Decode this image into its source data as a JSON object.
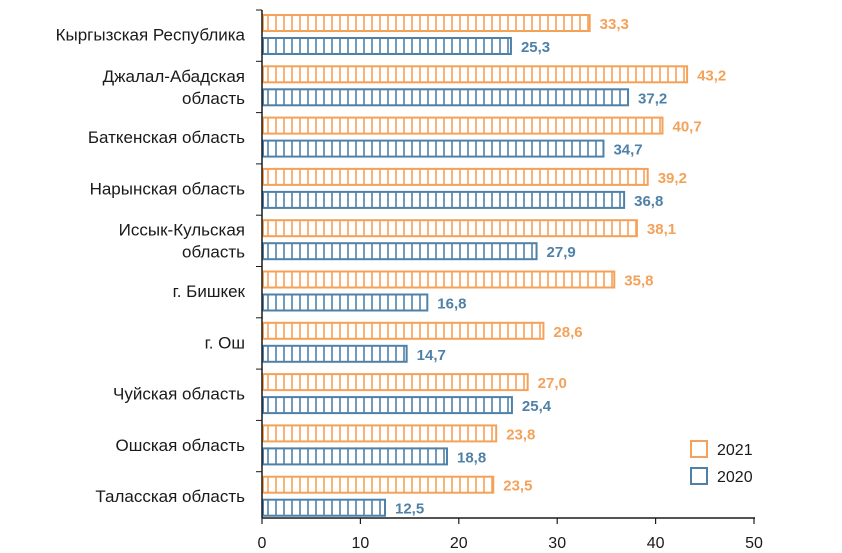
{
  "chart_data": {
    "type": "bar",
    "orientation": "horizontal",
    "title": "",
    "xlabel": "",
    "ylabel": "",
    "xlim": [
      0,
      50
    ],
    "xticks": [
      0,
      10,
      20,
      30,
      40,
      50
    ],
    "grid": false,
    "legend_position": "bottom-right",
    "categories": [
      "Кыргызская Республика",
      "Джалал-Абадская область",
      "Баткенская область",
      "Нарынская область",
      "Иссык-Кульская область",
      "г. Бишкек",
      "г. Ош",
      "Чуйская область",
      "Ошская область",
      "Таласская область"
    ],
    "series": [
      {
        "name": "2021",
        "color": "#F4A259",
        "values": [
          33.3,
          43.2,
          40.7,
          39.2,
          38.1,
          35.8,
          28.6,
          27.0,
          23.8,
          23.5
        ],
        "labels": [
          "33,3",
          "43,2",
          "40,7",
          "39,2",
          "38,1",
          "35,8",
          "28,6",
          "27,0",
          "23,8",
          "23,5"
        ]
      },
      {
        "name": "2020",
        "color": "#4F81A8",
        "values": [
          25.3,
          37.2,
          34.7,
          36.8,
          27.9,
          16.8,
          14.7,
          25.4,
          18.8,
          12.5
        ],
        "labels": [
          "25,3",
          "37,2",
          "34,7",
          "36,8",
          "27,9",
          "16,8",
          "14,7",
          "25,4",
          "18,8",
          "12,5"
        ]
      }
    ]
  }
}
